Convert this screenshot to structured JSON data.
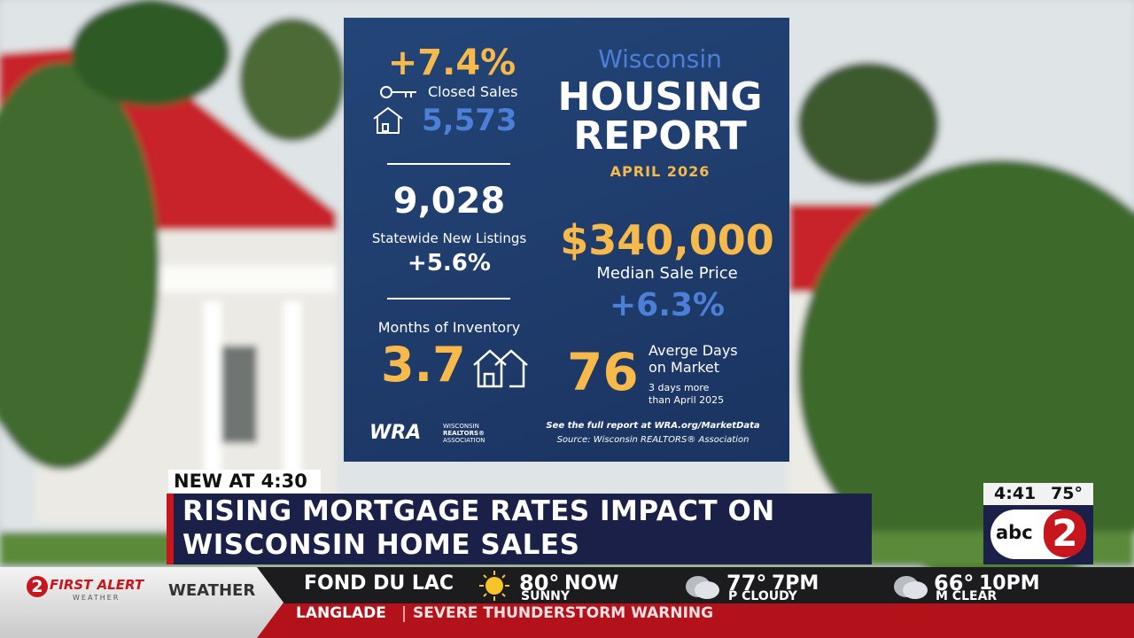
{
  "infographic": {
    "closed_sales": {
      "change": "+7.4%",
      "label": "Closed Sales",
      "value": "5,573"
    },
    "new_listings": {
      "value": "9,028",
      "label": "Statewide New Listings",
      "change": "+5.6%"
    },
    "inventory": {
      "label": "Months of Inventory",
      "value": "3.7"
    },
    "title": {
      "state": "Wisconsin",
      "line1": "HOUSING",
      "line2": "REPORT",
      "date": "APRIL 2026"
    },
    "median_price": {
      "value": "$340,000",
      "label": "Median Sale Price",
      "change": "+6.3%"
    },
    "days_on_market": {
      "value": "76",
      "label_line1": "Averge Days",
      "label_line2": "on Market",
      "note_line1": "3 days more",
      "note_line2": "than April 2025"
    },
    "footer": {
      "link": "See the full report at WRA.org/MarketData",
      "source": "Source: Wisconsin REALTORS® Association"
    },
    "logo": {
      "mark": "WRA",
      "line1": "WISCONSIN",
      "line2": "REALTORS®",
      "line3": "ASSOCIATION"
    }
  },
  "lower_third": {
    "tag": "NEW AT 4:30",
    "headline_line1": "RISING MORTGAGE RATES IMPACT ON",
    "headline_line2": "WISCONSIN HOME SALES"
  },
  "bug": {
    "time": "4:41",
    "temp": "75°",
    "network": "abc",
    "channel": "2"
  },
  "ticker": {
    "logo_number": "2",
    "logo_text": "FIRST ALERT",
    "logo_sub": "WEATHER",
    "section": "WEATHER",
    "city": "FOND DU LAC",
    "forecast": [
      {
        "temp": "80°",
        "time": "NOW",
        "condition": "SUNNY"
      },
      {
        "temp": "77°",
        "time": "7PM",
        "condition": "P CLOUDY"
      },
      {
        "temp": "66°",
        "time": "10PM",
        "condition": "M CLEAR"
      }
    ],
    "alert_location": "LANGLADE",
    "alert_text": "SEVERE THUNDERSTORM WARNING"
  }
}
